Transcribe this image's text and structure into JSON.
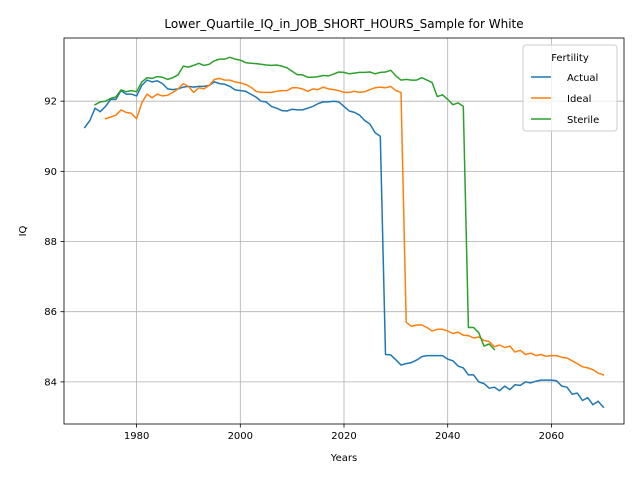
{
  "chart_data": {
    "type": "line",
    "title": "Lower_Quartile_IQ_in_JOB_SHORT_HOURS_Sample for White",
    "xlabel": "Years",
    "ylabel": "IQ",
    "xlim": [
      1966,
      2074
    ],
    "ylim": [
      82.8,
      93.8
    ],
    "xticks": [
      1980,
      2000,
      2020,
      2040,
      2060
    ],
    "yticks": [
      84,
      86,
      88,
      90,
      92
    ],
    "grid": true,
    "legend": {
      "title": "Fertility",
      "placement": "top-right",
      "entries": [
        "Actual",
        "Ideal",
        "Sterile"
      ]
    },
    "series": [
      {
        "name": "Actual",
        "color": "#1f77b4",
        "points": [
          [
            1970,
            91.25
          ],
          [
            1971,
            91.45
          ],
          [
            1972,
            91.8
          ],
          [
            1973,
            91.7
          ],
          [
            1974,
            91.85
          ],
          [
            1975,
            92.05
          ],
          [
            1976,
            92.05
          ],
          [
            1977,
            92.3
          ],
          [
            1978,
            92.2
          ],
          [
            1979,
            92.2
          ],
          [
            1980,
            92.15
          ],
          [
            1981,
            92.45
          ],
          [
            1982,
            92.6
          ],
          [
            1983,
            92.55
          ],
          [
            1984,
            92.58
          ],
          [
            1985,
            92.5
          ],
          [
            1986,
            92.35
          ],
          [
            1987,
            92.33
          ],
          [
            1988,
            92.35
          ],
          [
            1989,
            92.4
          ],
          [
            1990,
            92.42
          ],
          [
            1991,
            92.4
          ],
          [
            1992,
            92.42
          ],
          [
            1993,
            92.42
          ],
          [
            1994,
            92.45
          ],
          [
            1995,
            92.55
          ],
          [
            1996,
            92.5
          ],
          [
            1997,
            92.48
          ],
          [
            1998,
            92.42
          ],
          [
            1999,
            92.32
          ],
          [
            2000,
            92.3
          ],
          [
            2001,
            92.28
          ],
          [
            2002,
            92.2
          ],
          [
            2003,
            92.12
          ],
          [
            2004,
            92.0
          ],
          [
            2005,
            91.98
          ],
          [
            2006,
            91.85
          ],
          [
            2007,
            91.8
          ],
          [
            2008,
            91.73
          ],
          [
            2009,
            91.72
          ],
          [
            2010,
            91.77
          ],
          [
            2011,
            91.75
          ],
          [
            2012,
            91.75
          ],
          [
            2013,
            91.8
          ],
          [
            2014,
            91.85
          ],
          [
            2015,
            91.93
          ],
          [
            2016,
            91.98
          ],
          [
            2017,
            91.98
          ],
          [
            2018,
            92.0
          ],
          [
            2019,
            91.98
          ],
          [
            2020,
            91.85
          ],
          [
            2021,
            91.72
          ],
          [
            2022,
            91.68
          ],
          [
            2023,
            91.6
          ],
          [
            2024,
            91.45
          ],
          [
            2025,
            91.35
          ],
          [
            2026,
            91.1
          ],
          [
            2027,
            91.0
          ],
          [
            2028,
            84.78
          ],
          [
            2029,
            84.77
          ],
          [
            2030,
            84.63
          ],
          [
            2031,
            84.48
          ],
          [
            2032,
            84.52
          ],
          [
            2033,
            84.55
          ],
          [
            2034,
            84.62
          ],
          [
            2035,
            84.72
          ],
          [
            2036,
            84.75
          ],
          [
            2037,
            84.75
          ],
          [
            2038,
            84.75
          ],
          [
            2039,
            84.75
          ],
          [
            2040,
            84.65
          ],
          [
            2041,
            84.6
          ],
          [
            2042,
            84.45
          ],
          [
            2043,
            84.4
          ],
          [
            2044,
            84.2
          ],
          [
            2045,
            84.2
          ],
          [
            2046,
            84.0
          ],
          [
            2047,
            83.95
          ],
          [
            2048,
            83.82
          ],
          [
            2049,
            83.85
          ],
          [
            2050,
            83.75
          ],
          [
            2051,
            83.88
          ],
          [
            2052,
            83.78
          ],
          [
            2053,
            83.92
          ],
          [
            2054,
            83.9
          ],
          [
            2055,
            84.0
          ],
          [
            2056,
            83.97
          ],
          [
            2057,
            84.02
          ],
          [
            2058,
            84.05
          ],
          [
            2059,
            84.05
          ],
          [
            2060,
            84.05
          ],
          [
            2061,
            84.03
          ],
          [
            2062,
            83.88
          ],
          [
            2063,
            83.85
          ],
          [
            2064,
            83.65
          ],
          [
            2065,
            83.68
          ],
          [
            2066,
            83.47
          ],
          [
            2067,
            83.55
          ],
          [
            2068,
            83.35
          ],
          [
            2069,
            83.45
          ],
          [
            2070,
            83.28
          ]
        ]
      },
      {
        "name": "Ideal",
        "color": "#ff7f0e",
        "points": [
          [
            1974,
            91.5
          ],
          [
            1975,
            91.55
          ],
          [
            1976,
            91.6
          ],
          [
            1977,
            91.75
          ],
          [
            1978,
            91.68
          ],
          [
            1979,
            91.65
          ],
          [
            1980,
            91.5
          ],
          [
            1981,
            91.95
          ],
          [
            1982,
            92.2
          ],
          [
            1983,
            92.1
          ],
          [
            1984,
            92.2
          ],
          [
            1985,
            92.15
          ],
          [
            1986,
            92.17
          ],
          [
            1987,
            92.25
          ],
          [
            1988,
            92.35
          ],
          [
            1989,
            92.5
          ],
          [
            1990,
            92.42
          ],
          [
            1991,
            92.25
          ],
          [
            1992,
            92.38
          ],
          [
            1993,
            92.35
          ],
          [
            1994,
            92.45
          ],
          [
            1995,
            92.62
          ],
          [
            1996,
            92.65
          ],
          [
            1997,
            92.6
          ],
          [
            1998,
            92.6
          ],
          [
            1999,
            92.55
          ],
          [
            2000,
            92.52
          ],
          [
            2001,
            92.48
          ],
          [
            2002,
            92.4
          ],
          [
            2003,
            92.28
          ],
          [
            2004,
            92.25
          ],
          [
            2005,
            92.25
          ],
          [
            2006,
            92.25
          ],
          [
            2007,
            92.28
          ],
          [
            2008,
            92.3
          ],
          [
            2009,
            92.3
          ],
          [
            2010,
            92.38
          ],
          [
            2011,
            92.38
          ],
          [
            2012,
            92.35
          ],
          [
            2013,
            92.28
          ],
          [
            2014,
            92.35
          ],
          [
            2015,
            92.33
          ],
          [
            2016,
            92.4
          ],
          [
            2017,
            92.35
          ],
          [
            2018,
            92.33
          ],
          [
            2019,
            92.3
          ],
          [
            2020,
            92.25
          ],
          [
            2021,
            92.25
          ],
          [
            2022,
            92.28
          ],
          [
            2023,
            92.25
          ],
          [
            2024,
            92.27
          ],
          [
            2025,
            92.33
          ],
          [
            2026,
            92.38
          ],
          [
            2027,
            92.4
          ],
          [
            2028,
            92.38
          ],
          [
            2029,
            92.42
          ],
          [
            2030,
            92.3
          ],
          [
            2031,
            92.25
          ],
          [
            2032,
            85.7
          ],
          [
            2033,
            85.58
          ],
          [
            2034,
            85.62
          ],
          [
            2035,
            85.62
          ],
          [
            2036,
            85.55
          ],
          [
            2037,
            85.45
          ],
          [
            2038,
            85.5
          ],
          [
            2039,
            85.5
          ],
          [
            2040,
            85.45
          ],
          [
            2041,
            85.38
          ],
          [
            2042,
            85.42
          ],
          [
            2043,
            85.33
          ],
          [
            2044,
            85.32
          ],
          [
            2045,
            85.25
          ],
          [
            2046,
            85.28
          ],
          [
            2047,
            85.18
          ],
          [
            2048,
            85.15
          ],
          [
            2049,
            85.0
          ],
          [
            2050,
            85.05
          ],
          [
            2051,
            84.98
          ],
          [
            2052,
            85.02
          ],
          [
            2053,
            84.85
          ],
          [
            2054,
            84.9
          ],
          [
            2055,
            84.78
          ],
          [
            2056,
            84.82
          ],
          [
            2057,
            84.75
          ],
          [
            2058,
            84.78
          ],
          [
            2059,
            84.73
          ],
          [
            2060,
            84.75
          ],
          [
            2061,
            84.75
          ],
          [
            2062,
            84.7
          ],
          [
            2063,
            84.68
          ],
          [
            2064,
            84.6
          ],
          [
            2065,
            84.52
          ],
          [
            2066,
            84.43
          ],
          [
            2067,
            84.4
          ],
          [
            2068,
            84.35
          ],
          [
            2069,
            84.25
          ],
          [
            2070,
            84.2
          ]
        ]
      },
      {
        "name": "Sterile",
        "color": "#2ca02c",
        "points": [
          [
            1972,
            91.9
          ],
          [
            1973,
            91.98
          ],
          [
            1974,
            92.0
          ],
          [
            1975,
            92.08
          ],
          [
            1976,
            92.12
          ],
          [
            1977,
            92.32
          ],
          [
            1978,
            92.27
          ],
          [
            1979,
            92.3
          ],
          [
            1980,
            92.27
          ],
          [
            1981,
            92.55
          ],
          [
            1982,
            92.67
          ],
          [
            1983,
            92.65
          ],
          [
            1984,
            92.7
          ],
          [
            1985,
            92.68
          ],
          [
            1986,
            92.62
          ],
          [
            1987,
            92.67
          ],
          [
            1988,
            92.75
          ],
          [
            1989,
            93.0
          ],
          [
            1990,
            92.97
          ],
          [
            1991,
            93.02
          ],
          [
            1992,
            93.08
          ],
          [
            1993,
            93.02
          ],
          [
            1994,
            93.05
          ],
          [
            1995,
            93.15
          ],
          [
            1996,
            93.2
          ],
          [
            1997,
            93.2
          ],
          [
            1998,
            93.25
          ],
          [
            1999,
            93.2
          ],
          [
            2000,
            93.17
          ],
          [
            2001,
            93.1
          ],
          [
            2002,
            93.08
          ],
          [
            2003,
            93.07
          ],
          [
            2004,
            93.05
          ],
          [
            2005,
            93.03
          ],
          [
            2006,
            93.02
          ],
          [
            2007,
            93.03
          ],
          [
            2008,
            93.0
          ],
          [
            2009,
            92.95
          ],
          [
            2010,
            92.85
          ],
          [
            2011,
            92.75
          ],
          [
            2012,
            92.75
          ],
          [
            2013,
            92.68
          ],
          [
            2014,
            92.68
          ],
          [
            2015,
            92.7
          ],
          [
            2016,
            92.73
          ],
          [
            2017,
            92.72
          ],
          [
            2018,
            92.77
          ],
          [
            2019,
            92.83
          ],
          [
            2020,
            92.82
          ],
          [
            2021,
            92.78
          ],
          [
            2022,
            92.8
          ],
          [
            2023,
            92.82
          ],
          [
            2024,
            92.82
          ],
          [
            2025,
            92.83
          ],
          [
            2026,
            92.78
          ],
          [
            2027,
            92.82
          ],
          [
            2028,
            92.83
          ],
          [
            2029,
            92.88
          ],
          [
            2030,
            92.72
          ],
          [
            2031,
            92.6
          ],
          [
            2032,
            92.62
          ],
          [
            2033,
            92.6
          ],
          [
            2034,
            92.6
          ],
          [
            2035,
            92.67
          ],
          [
            2036,
            92.6
          ],
          [
            2037,
            92.53
          ],
          [
            2038,
            92.13
          ],
          [
            2039,
            92.18
          ],
          [
            2040,
            92.05
          ],
          [
            2041,
            91.9
          ],
          [
            2042,
            91.95
          ],
          [
            2043,
            91.85
          ],
          [
            2044,
            85.55
          ],
          [
            2045,
            85.55
          ],
          [
            2046,
            85.4
          ],
          [
            2047,
            85.02
          ],
          [
            2048,
            85.08
          ],
          [
            2049,
            84.92
          ]
        ]
      }
    ]
  }
}
